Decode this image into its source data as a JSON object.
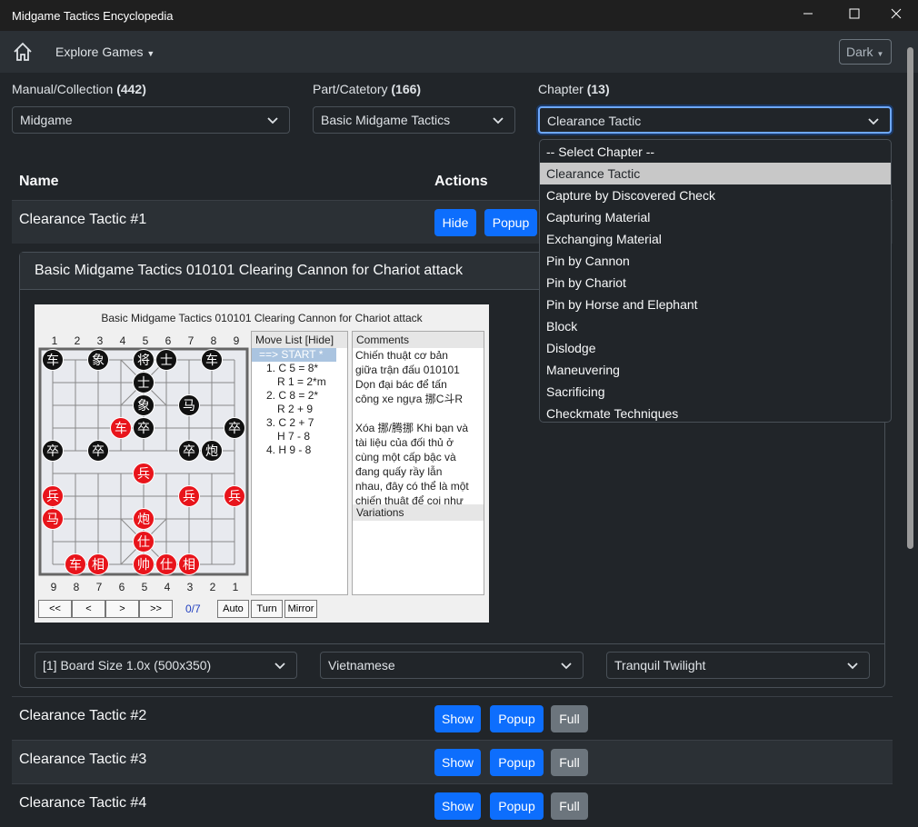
{
  "window": {
    "title": "Midgame Tactics Encyclopedia"
  },
  "nav": {
    "explore": "Explore Games",
    "theme": "Dark"
  },
  "filters": [
    {
      "label": "Manual/Collection",
      "count": "(442)",
      "value": "Midgame"
    },
    {
      "label": "Part/Catetory",
      "count": "(166)",
      "value": "Basic Midgame Tactics"
    },
    {
      "label": "Chapter",
      "count": "(13)",
      "value": "Clearance Tactic"
    }
  ],
  "chapter_options": [
    "-- Select Chapter --",
    "Clearance Tactic",
    "Capture by Discovered Check",
    "Capturing Material",
    "Exchanging Material",
    "Pin by Cannon",
    "Pin by Chariot",
    "Pin by Horse and Elephant",
    "Block",
    "Dislodge",
    "Maneuvering",
    "Sacrificing",
    "Checkmate Techniques"
  ],
  "table": {
    "headers": [
      "Name",
      "Actions"
    ],
    "rows": [
      {
        "name": "Clearance Tactic #1",
        "actions": [
          "Hide",
          "Popup"
        ]
      },
      {
        "name": "Clearance Tactic #2",
        "actions": [
          "Show",
          "Popup",
          "Full"
        ]
      },
      {
        "name": "Clearance Tactic #3",
        "actions": [
          "Show",
          "Popup",
          "Full"
        ]
      },
      {
        "name": "Clearance Tactic #4",
        "actions": [
          "Show",
          "Popup",
          "Full"
        ]
      }
    ]
  },
  "panel": {
    "title": "Basic Midgame Tactics 010101 Clearing Cannon for Chariot attack",
    "viewer": {
      "title": "Basic Midgame Tactics 010101 Clearing Cannon for Chariot attack",
      "files_top": [
        1,
        2,
        3,
        4,
        5,
        6,
        7,
        8,
        9
      ],
      "files_bottom": [
        9,
        8,
        7,
        6,
        5,
        4,
        3,
        2,
        1
      ],
      "board": [
        [
          {
            "char": "车",
            "color": "black"
          },
          null,
          {
            "char": "象",
            "color": "black"
          },
          null,
          {
            "char": "将",
            "color": "black"
          },
          {
            "char": "士",
            "color": "black"
          },
          null,
          {
            "char": "车",
            "color": "black"
          },
          null
        ],
        [
          null,
          null,
          null,
          null,
          {
            "char": "士",
            "color": "black"
          },
          null,
          null,
          null,
          null
        ],
        [
          null,
          null,
          null,
          null,
          {
            "char": "象",
            "color": "black"
          },
          null,
          {
            "char": "马",
            "color": "black"
          },
          null,
          null
        ],
        [
          null,
          null,
          null,
          {
            "char": "车",
            "color": "red"
          },
          {
            "char": "卒",
            "color": "black"
          },
          null,
          null,
          null,
          {
            "char": "卒",
            "color": "black"
          }
        ],
        [
          {
            "char": "卒",
            "color": "black"
          },
          null,
          {
            "char": "卒",
            "color": "black"
          },
          null,
          null,
          null,
          {
            "char": "卒",
            "color": "black"
          },
          {
            "char": "炮",
            "color": "black"
          },
          null
        ],
        [
          null,
          null,
          null,
          null,
          {
            "char": "兵",
            "color": "red"
          },
          null,
          null,
          null,
          null
        ],
        [
          {
            "char": "兵",
            "color": "red"
          },
          null,
          null,
          null,
          null,
          null,
          {
            "char": "兵",
            "color": "red"
          },
          null,
          {
            "char": "兵",
            "color": "red"
          }
        ],
        [
          {
            "char": "马",
            "color": "red"
          },
          null,
          null,
          null,
          {
            "char": "炮",
            "color": "red"
          },
          null,
          null,
          null,
          null
        ],
        [
          null,
          null,
          null,
          null,
          {
            "char": "仕",
            "color": "red"
          },
          null,
          null,
          null,
          null
        ],
        [
          null,
          {
            "char": "车",
            "color": "red"
          },
          {
            "char": "相",
            "color": "red"
          },
          null,
          {
            "char": "帅",
            "color": "red"
          },
          {
            "char": "仕",
            "color": "red"
          },
          {
            "char": "相",
            "color": "red"
          },
          null,
          null
        ]
      ],
      "move_list": {
        "header": "Move List [Hide]",
        "moves": [
          "==> START *",
          "1. C 5 = 8*",
          "R 1 = 2*m",
          "2. C 8 = 2*",
          "R 2 + 9",
          "3. C 2 + 7",
          "H 7 - 8",
          "4. H 9 - 8"
        ]
      },
      "comments": {
        "header": "Comments",
        "paragraphs": [
          "Chiến thuật cơ bản giữa trận đấu 010101 Dọn đại bác để tấn công xe ngựa 挪C斗R",
          "Xóa 挪/腾挪 Khi bạn và tài liệu của đối thủ ở cùng một cấp bậc và đang quấy rầy lẫn nhau, đây có thể là một chiến thuật để coi như"
        ]
      },
      "variations": "Variations",
      "nav_buttons": [
        "<<",
        "<",
        ">",
        ">>"
      ],
      "counter": "0/7",
      "toggles": [
        "Auto",
        "Turn",
        "Mirror"
      ]
    },
    "selects": [
      "[1] Board Size 1.0x (500x350)",
      "Vietnamese",
      "Tranquil Twilight"
    ]
  }
}
